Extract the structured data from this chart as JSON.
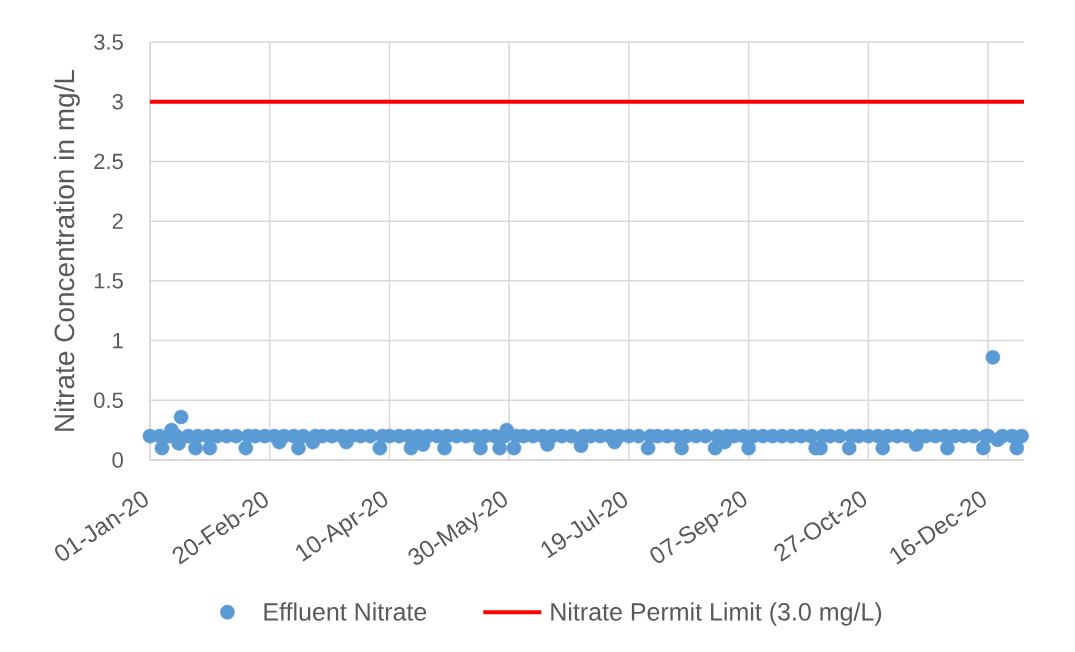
{
  "chart_data": {
    "type": "scatter",
    "ylabel": "Nitrate Concentration in mg/L",
    "xlim": [
      "2020-01-01",
      "2020-12-31"
    ],
    "xticks": [
      {
        "value": "2020-01-01",
        "label": "01-Jan-20"
      },
      {
        "value": "2020-02-20",
        "label": "20-Feb-20"
      },
      {
        "value": "2020-04-10",
        "label": "10-Apr-20"
      },
      {
        "value": "2020-05-30",
        "label": "30-May-20"
      },
      {
        "value": "2020-07-19",
        "label": "19-Jul-20"
      },
      {
        "value": "2020-09-07",
        "label": "07-Sep-20"
      },
      {
        "value": "2020-10-27",
        "label": "27-Oct-20"
      },
      {
        "value": "2020-12-16",
        "label": "16-Dec-20"
      }
    ],
    "ylim": [
      0,
      3.5
    ],
    "yticks": [
      0,
      0.5,
      1,
      1.5,
      2,
      2.5,
      3,
      3.5
    ],
    "grid": true,
    "legend": "bottom",
    "marker": "circle",
    "series": [
      {
        "name": "Effluent Nitrate",
        "color": "#5b9bd5",
        "x": [
          "2020-01-01",
          "2020-01-05",
          "2020-01-06",
          "2020-01-09",
          "2020-01-10",
          "2020-01-12",
          "2020-01-13",
          "2020-01-14",
          "2020-01-17",
          "2020-01-20",
          "2020-01-21",
          "2020-01-25",
          "2020-01-26",
          "2020-01-29",
          "2020-02-02",
          "2020-02-06",
          "2020-02-10",
          "2020-02-11",
          "2020-02-14",
          "2020-02-18",
          "2020-02-22",
          "2020-02-24",
          "2020-02-26",
          "2020-03-01",
          "2020-03-03",
          "2020-03-05",
          "2020-03-09",
          "2020-03-10",
          "2020-03-13",
          "2020-03-17",
          "2020-03-21",
          "2020-03-23",
          "2020-03-25",
          "2020-03-29",
          "2020-04-02",
          "2020-04-06",
          "2020-04-07",
          "2020-04-10",
          "2020-04-14",
          "2020-04-18",
          "2020-04-19",
          "2020-04-22",
          "2020-04-24",
          "2020-04-26",
          "2020-04-30",
          "2020-05-03",
          "2020-05-04",
          "2020-05-08",
          "2020-05-12",
          "2020-05-16",
          "2020-05-18",
          "2020-05-20",
          "2020-05-24",
          "2020-05-26",
          "2020-05-28",
          "2020-05-29",
          "2020-06-01",
          "2020-06-02",
          "2020-06-05",
          "2020-06-09",
          "2020-06-13",
          "2020-06-15",
          "2020-06-17",
          "2020-06-21",
          "2020-06-25",
          "2020-06-29",
          "2020-06-30",
          "2020-07-03",
          "2020-07-07",
          "2020-07-11",
          "2020-07-13",
          "2020-07-15",
          "2020-07-19",
          "2020-07-23",
          "2020-07-27",
          "2020-07-28",
          "2020-07-31",
          "2020-08-04",
          "2020-08-08",
          "2020-08-10",
          "2020-08-12",
          "2020-08-16",
          "2020-08-20",
          "2020-08-24",
          "2020-08-25",
          "2020-08-28",
          "2020-08-29",
          "2020-09-01",
          "2020-09-05",
          "2020-09-07",
          "2020-09-09",
          "2020-09-13",
          "2020-09-17",
          "2020-09-21",
          "2020-09-25",
          "2020-09-29",
          "2020-10-03",
          "2020-10-05",
          "2020-10-07",
          "2020-10-08",
          "2020-10-11",
          "2020-10-15",
          "2020-10-19",
          "2020-10-20",
          "2020-10-23",
          "2020-10-27",
          "2020-10-31",
          "2020-11-02",
          "2020-11-04",
          "2020-11-08",
          "2020-11-12",
          "2020-11-16",
          "2020-11-17",
          "2020-11-20",
          "2020-11-24",
          "2020-11-28",
          "2020-11-29",
          "2020-12-02",
          "2020-12-06",
          "2020-12-10",
          "2020-12-14",
          "2020-12-15",
          "2020-12-16",
          "2020-12-18",
          "2020-12-20",
          "2020-12-22",
          "2020-12-26",
          "2020-12-28",
          "2020-12-30"
        ],
        "values": [
          0.2,
          0.2,
          0.1,
          0.2,
          0.25,
          0.2,
          0.14,
          0.36,
          0.2,
          0.1,
          0.2,
          0.2,
          0.1,
          0.2,
          0.2,
          0.2,
          0.1,
          0.2,
          0.2,
          0.2,
          0.2,
          0.15,
          0.2,
          0.2,
          0.1,
          0.2,
          0.15,
          0.2,
          0.2,
          0.2,
          0.2,
          0.15,
          0.2,
          0.2,
          0.2,
          0.1,
          0.2,
          0.2,
          0.2,
          0.2,
          0.1,
          0.2,
          0.13,
          0.2,
          0.2,
          0.1,
          0.2,
          0.2,
          0.2,
          0.2,
          0.1,
          0.2,
          0.2,
          0.1,
          0.2,
          0.25,
          0.1,
          0.2,
          0.2,
          0.2,
          0.2,
          0.13,
          0.2,
          0.2,
          0.2,
          0.12,
          0.2,
          0.2,
          0.2,
          0.2,
          0.15,
          0.2,
          0.2,
          0.2,
          0.1,
          0.2,
          0.2,
          0.2,
          0.2,
          0.1,
          0.2,
          0.2,
          0.2,
          0.1,
          0.2,
          0.15,
          0.2,
          0.2,
          0.2,
          0.1,
          0.2,
          0.2,
          0.2,
          0.2,
          0.2,
          0.2,
          0.2,
          0.1,
          0.1,
          0.2,
          0.2,
          0.2,
          0.1,
          0.2,
          0.2,
          0.2,
          0.2,
          0.1,
          0.2,
          0.2,
          0.2,
          0.13,
          0.2,
          0.2,
          0.2,
          0.2,
          0.1,
          0.2,
          0.2,
          0.2,
          0.1,
          0.2,
          0.2,
          0.86,
          0.17,
          0.2,
          0.2,
          0.1,
          0.2
        ]
      },
      {
        "name": "Nitrate Permit Limit (3.0 mg/L)",
        "type": "line",
        "marker": "none",
        "color": "#ff0000",
        "x": [
          "2020-01-01",
          "2020-12-31"
        ],
        "values": [
          3,
          3
        ]
      }
    ]
  }
}
